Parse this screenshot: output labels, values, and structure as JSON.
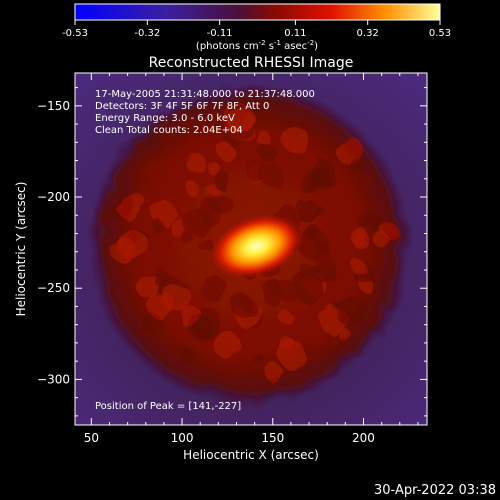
{
  "chart_data": {
    "type": "heatmap",
    "title": "Reconstructed RHESSI Image",
    "colorbar": {
      "ticks": [
        "-0.53",
        "-0.32",
        "-0.11",
        "0.11",
        "0.32",
        "0.53"
      ],
      "range": [
        -0.53,
        0.53
      ],
      "unit_line": [
        {
          "t": "(photons cm",
          "sup": false
        },
        {
          "t": "-2",
          "sup": true
        },
        {
          "t": " s",
          "sup": false
        },
        {
          "t": "-1",
          "sup": true
        },
        {
          "t": " asec",
          "sup": false
        },
        {
          "t": "-2",
          "sup": true
        },
        {
          "t": ")",
          "sup": false
        }
      ]
    },
    "xlabel": "Heliocentric X (arcsec)",
    "ylabel": "Heliocentric Y (arcsec)",
    "xlim": [
      41,
      235
    ],
    "ylim": [
      -325,
      -132
    ],
    "xticks": [
      50,
      100,
      150,
      200
    ],
    "yticks": [
      -150,
      -200,
      -250,
      -300
    ],
    "annotations": [
      "17-May-2005 21:31:48.000 to 21:37:48.000",
      "Detectors: 3F 4F 5F 6F 7F 8F, Att 0",
      "Energy Range: 3.0 - 6.0 keV",
      "Clean     Total counts: 2.04E+04"
    ],
    "peak_label": "Position of Peak = [141,-227]",
    "peak": [
      141,
      -227
    ],
    "peak_value": 0.53,
    "disk_radius": 82
  },
  "footer": {
    "timestamp": "30-Apr-2022 03:38"
  }
}
